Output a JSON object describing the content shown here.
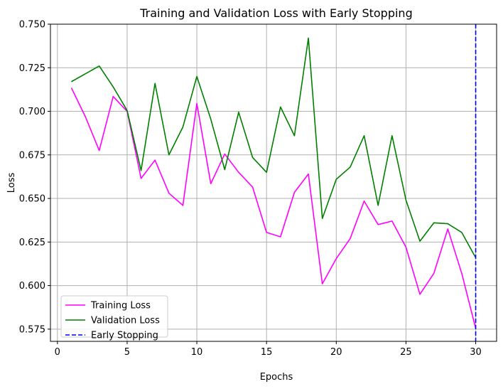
{
  "chart_data": {
    "type": "line",
    "title": "Training and Validation Loss with Early Stopping",
    "xlabel": "Epochs",
    "ylabel": "Loss",
    "xlim": [
      -0.5,
      31.5
    ],
    "ylim": [
      0.568,
      0.75
    ],
    "xticks": [
      0,
      5,
      10,
      15,
      20,
      25,
      30
    ],
    "yticks": [
      0.575,
      0.6,
      0.625,
      0.65,
      0.675,
      0.7,
      0.725,
      0.75
    ],
    "ytick_labels": [
      "0.575",
      "0.600",
      "0.625",
      "0.650",
      "0.675",
      "0.700",
      "0.725",
      "0.750"
    ],
    "grid": true,
    "legend_position": "lower-left",
    "x": [
      1,
      2,
      3,
      4,
      5,
      6,
      7,
      8,
      9,
      10,
      11,
      12,
      13,
      14,
      15,
      16,
      17,
      18,
      19,
      20,
      21,
      22,
      23,
      24,
      25,
      26,
      27,
      28,
      29,
      30
    ],
    "series": [
      {
        "name": "Training Loss",
        "color": "#ff00ff",
        "values": [
          0.7135,
          0.697,
          0.6775,
          0.7085,
          0.7,
          0.6615,
          0.672,
          0.653,
          0.646,
          0.7045,
          0.6585,
          0.6755,
          0.665,
          0.6565,
          0.6305,
          0.628,
          0.6535,
          0.664,
          0.601,
          0.6155,
          0.627,
          0.6485,
          0.635,
          0.637,
          0.622,
          0.595,
          0.607,
          0.6325,
          0.607,
          0.5755
        ]
      },
      {
        "name": "Validation Loss",
        "color": "#008000",
        "values": [
          0.717,
          0.7215,
          0.726,
          0.714,
          0.7005,
          0.666,
          0.716,
          0.675,
          0.691,
          0.72,
          0.6955,
          0.6665,
          0.6995,
          0.6735,
          0.665,
          0.7025,
          0.686,
          0.742,
          0.6385,
          0.661,
          0.668,
          0.686,
          0.646,
          0.686,
          0.649,
          0.6255,
          0.636,
          0.6355,
          0.6305,
          0.616
        ]
      }
    ],
    "vlines": [
      {
        "name": "Early Stopping",
        "x": 30,
        "color": "#0000ff",
        "style": "dashed"
      }
    ]
  }
}
